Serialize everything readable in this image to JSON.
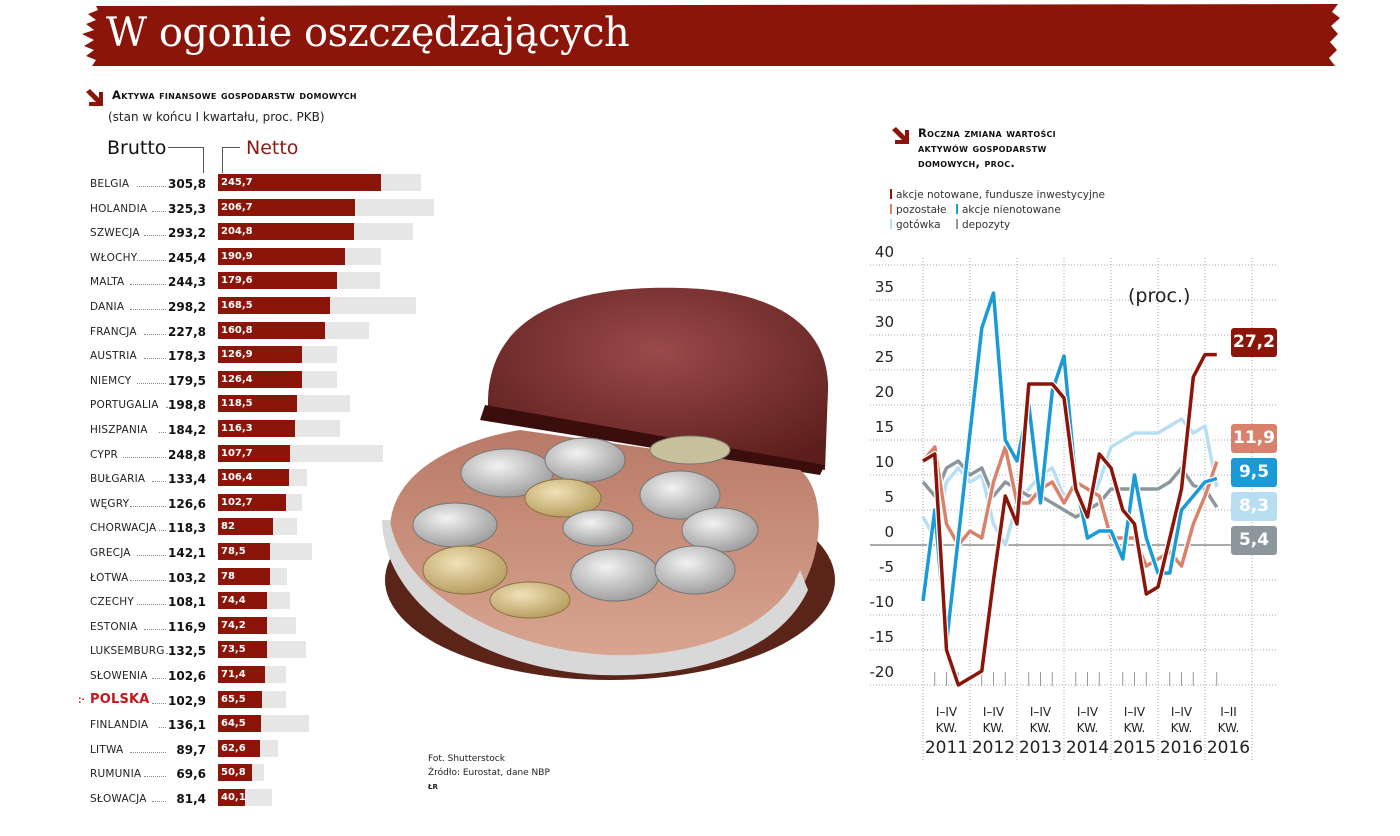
{
  "title": "W ogonie oszczędzających",
  "left_section": {
    "title": "Aktywa finansowe gospodarstw domowych",
    "subtitle": "(stan w końcu I kwartału, proc. PKB)",
    "brutto_label": "Brutto",
    "netto_label": "Netto"
  },
  "right_section": {
    "title_line1": "Roczna zmiana wartości",
    "title_line2": "aktywów gospodarstw",
    "title_line3": "domowych, proc.",
    "unit_label": "(proc.)",
    "legend": [
      {
        "label": "akcje notowane, fundusze inwestycyjne",
        "color": "#8b1508"
      },
      {
        "label": "pozostałe",
        "color": "#d9826b"
      },
      {
        "label": "akcje nienotowane",
        "color": "#1a9ad6"
      },
      {
        "label": "gotówka",
        "color": "#b8def2"
      },
      {
        "label": "depozyty",
        "color": "#8c979d"
      }
    ],
    "end_values": [
      {
        "label": "27,2",
        "color": "#8b1508"
      },
      {
        "label": "11,9",
        "color": "#d9826b"
      },
      {
        "label": "9,5",
        "color": "#1a9ad6"
      },
      {
        "label": "8,3",
        "color": "#b8def2"
      },
      {
        "label": "5,4",
        "color": "#8c979d"
      }
    ]
  },
  "credits": {
    "photo": "Fot. Shutterstock",
    "source": "Źródło: Eurostat, dane NBP",
    "initials": "ŁR"
  },
  "chart_data": [
    {
      "type": "bar",
      "title": "Aktywa finansowe gospodarstw domowych",
      "subtitle": "(stan w końcu I kwartału, proc. PKB)",
      "xlabel": "",
      "ylabel": "proc. PKB",
      "highlight": "POLSKA",
      "highlight_color": "#c4161c",
      "categories": [
        "BELGIA",
        "HOLANDIA",
        "SZWECJA",
        "WŁOCHY",
        "MALTA",
        "DANIA",
        "FRANCJA",
        "AUSTRIA",
        "NIEMCY",
        "PORTUGALIA",
        "HISZPANIA",
        "CYPR",
        "BUŁGARIA",
        "WĘGRY",
        "CHORWACJA",
        "GRECJA",
        "ŁOTWA",
        "CZECHY",
        "ESTONIA",
        "LUKSEMBURG",
        "SŁOWENIA",
        "POLSKA",
        "FINLANDIA",
        "LITWA",
        "RUMUNIA",
        "SŁOWACJA"
      ],
      "series": [
        {
          "name": "Brutto",
          "color": "#e6e6e6",
          "values": [
            305.8,
            325.3,
            293.2,
            245.4,
            244.3,
            298.2,
            227.8,
            178.3,
            179.5,
            198.8,
            184.2,
            248.8,
            133.4,
            126.6,
            118.3,
            142.1,
            103.2,
            108.1,
            116.9,
            132.5,
            102.6,
            102.9,
            136.1,
            89.7,
            69.6,
            81.4
          ],
          "labels": [
            "305,8",
            "325,3",
            "293,2",
            "245,4",
            "244,3",
            "298,2",
            "227,8",
            "178,3",
            "179,5",
            "198,8",
            "184,2",
            "248,8",
            "133,4",
            "126,6",
            "118,3",
            "142,1",
            "103,2",
            "108,1",
            "116,9",
            "132,5",
            "102,6",
            "102,9",
            "136,1",
            "89,7",
            "69,6",
            "81,4"
          ]
        },
        {
          "name": "Netto",
          "color": "#8b1508",
          "values": [
            245.7,
            206.7,
            204.8,
            190.9,
            179.6,
            168.5,
            160.8,
            126.9,
            126.4,
            118.5,
            116.3,
            107.7,
            106.4,
            102.7,
            82,
            78.5,
            78,
            74.4,
            74.2,
            73.5,
            71.4,
            65.5,
            64.5,
            62.6,
            50.8,
            40.1
          ],
          "labels": [
            "245,7",
            "206,7",
            "204,8",
            "190,9",
            "179,6",
            "168,5",
            "160,8",
            "126,9",
            "126,4",
            "118,5",
            "116,3",
            "107,7",
            "106,4",
            "102,7",
            "82",
            "78,5",
            "78",
            "74,4",
            "74,2",
            "73,5",
            "71,4",
            "65,5",
            "64,5",
            "62,6",
            "50,8",
            "40,1"
          ]
        }
      ]
    },
    {
      "type": "line",
      "title": "Roczna zmiana wartości aktywów gospodarstw domowych, proc.",
      "annotation": "(proc.)",
      "xlabel": "",
      "ylabel": "proc.",
      "ylim": [
        -20,
        40
      ],
      "yticks": [
        40,
        35,
        30,
        25,
        20,
        15,
        10,
        5,
        0,
        -5,
        -10,
        -15,
        -20
      ],
      "grid": true,
      "x_groups": [
        {
          "top": "I–IV",
          "mid": "KW.",
          "year": "2011"
        },
        {
          "top": "I–IV",
          "mid": "KW.",
          "year": "2012"
        },
        {
          "top": "I–IV",
          "mid": "KW.",
          "year": "2013"
        },
        {
          "top": "I–IV",
          "mid": "KW.",
          "year": "2014"
        },
        {
          "top": "I–IV",
          "mid": "KW.",
          "year": "2015"
        },
        {
          "top": "I–IV",
          "mid": "KW.",
          "year": "2016"
        },
        {
          "top": "I–II",
          "mid": "KW.",
          "year": "2016"
        }
      ],
      "x": [
        "2011 Q1",
        "2011 Q2",
        "2011 Q3",
        "2011 Q4",
        "2012 Q1",
        "2012 Q2",
        "2012 Q3",
        "2012 Q4",
        "2013 Q1",
        "2013 Q2",
        "2013 Q3",
        "2013 Q4",
        "2014 Q1",
        "2014 Q2",
        "2014 Q3",
        "2014 Q4",
        "2015 Q1",
        "2015 Q2",
        "2015 Q3",
        "2015 Q4",
        "2016 Q1",
        "2016 Q2",
        "2016 Q3",
        "2016 Q4",
        "I–II Q1",
        "I–II Q2"
      ],
      "series": [
        {
          "name": "gotówka",
          "color": "#b8def2",
          "values": [
            4,
            1,
            9,
            11,
            9,
            10,
            3,
            0,
            6,
            8,
            10,
            11,
            7,
            8,
            5,
            9,
            14,
            15,
            16,
            16,
            16,
            17,
            18,
            16,
            17,
            8.3
          ]
        },
        {
          "name": "depozyty",
          "color": "#8c979d",
          "values": [
            9,
            7,
            11,
            12,
            10,
            11,
            7,
            9,
            8,
            7,
            7,
            6,
            5,
            4,
            5,
            6,
            8,
            8,
            8,
            8,
            8,
            9,
            11,
            8.5,
            8,
            5.4
          ]
        },
        {
          "name": "pozostałe",
          "color": "#d9826b",
          "values": [
            12,
            14,
            3,
            0,
            2,
            1,
            9,
            14,
            6,
            6,
            8,
            9,
            6,
            9,
            8,
            7,
            1,
            1,
            1,
            -3,
            -2,
            -1,
            -3,
            3,
            7,
            11.9
          ]
        },
        {
          "name": "akcje nienotowane",
          "color": "#1a9ad6",
          "values": [
            -8,
            5,
            -14,
            1,
            16,
            31,
            36,
            15,
            12,
            20,
            6,
            22,
            27,
            9,
            1,
            2,
            2,
            -2,
            10,
            1,
            -4,
            -4,
            5,
            7,
            9,
            9.5
          ]
        },
        {
          "name": "akcje notowane, fundusze inwestycyjne",
          "color": "#8b1508",
          "values": [
            12,
            13,
            -15,
            -20,
            -19,
            -18,
            -5,
            7,
            3,
            23,
            23,
            23,
            21,
            8,
            4,
            13,
            11,
            5,
            3,
            -7,
            -6,
            1,
            8,
            24,
            27.2,
            27.2
          ]
        }
      ],
      "end_labels": [
        "27,2",
        "11,9",
        "9,5",
        "8,3",
        "5,4"
      ]
    }
  ]
}
